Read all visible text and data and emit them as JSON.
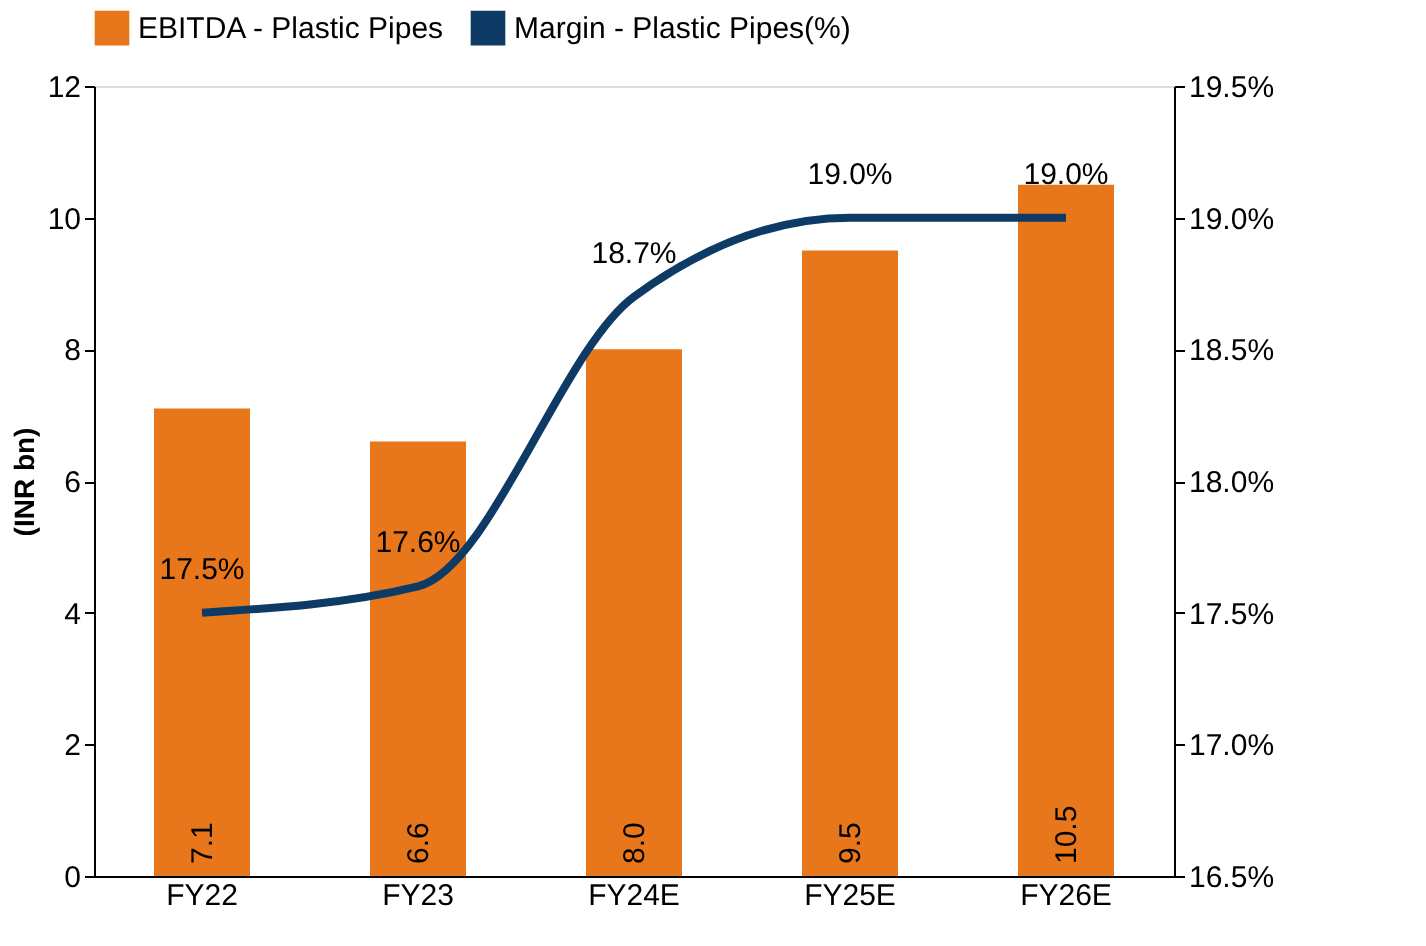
{
  "chart_data": {
    "type": "bar",
    "categories": [
      "FY22",
      "FY23",
      "FY24E",
      "FY25E",
      "FY26E"
    ],
    "series": [
      {
        "name": "EBITDA - Plastic Pipes",
        "color": "#e8761a",
        "values": [
          7.1,
          6.6,
          8.0,
          9.5,
          10.5
        ],
        "value_labels": [
          "7.1",
          "6.6",
          "8.0",
          "9.5",
          "10.5"
        ]
      },
      {
        "name": "Margin - Plastic Pipes(%)",
        "type": "line",
        "axis": "y2",
        "color": "#0e3a66",
        "values": [
          17.5,
          17.6,
          18.7,
          19.0,
          19.0
        ],
        "value_labels": [
          "17.5%",
          "17.6%",
          "18.7%",
          "19.0%",
          "19.0%"
        ]
      }
    ],
    "ylabel": "(INR bn)",
    "ylim": [
      0,
      12
    ],
    "yticks": [
      0,
      2,
      4,
      6,
      8,
      10,
      12
    ],
    "y2lim": [
      16.5,
      19.5
    ],
    "y2ticks": [
      {
        "value": 16.5,
        "label": "16.5%"
      },
      {
        "value": 17.0,
        "label": "17.0%"
      },
      {
        "value": 17.5,
        "label": "17.5%"
      },
      {
        "value": 18.0,
        "label": "18.0%"
      },
      {
        "value": 18.5,
        "label": "18.5%"
      },
      {
        "value": 19.0,
        "label": "19.0%"
      },
      {
        "value": 19.5,
        "label": "19.5%"
      }
    ],
    "grid": false,
    "legend": "top",
    "marker": "none",
    "line_style": "solid"
  }
}
